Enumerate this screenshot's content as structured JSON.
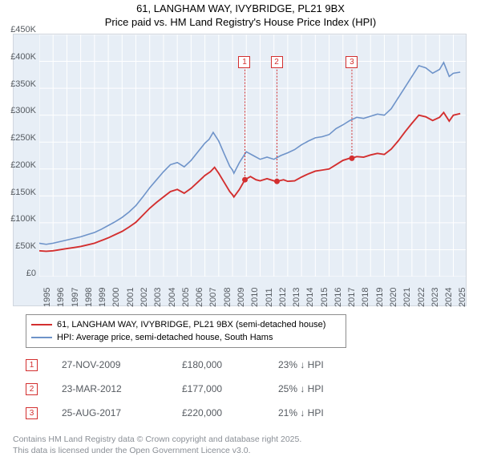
{
  "title": {
    "line1": "61, LANGHAM WAY, IVYBRIDGE, PL21 9BX",
    "line2": "Price paid vs. HM Land Registry's House Price Index (HPI)",
    "fontsize": 13,
    "color": "#000000"
  },
  "chart": {
    "type": "line",
    "background_color": "#e7eef6",
    "grid_color": "#ffffff",
    "axis_label_fontsize": 11,
    "axis_label_color": "#555a60",
    "x_axis": {
      "min": 1995,
      "max": 2025.9,
      "ticks": [
        1995,
        1996,
        1997,
        1998,
        1999,
        2000,
        2001,
        2002,
        2003,
        2004,
        2005,
        2006,
        2007,
        2008,
        2009,
        2010,
        2011,
        2012,
        2013,
        2014,
        2015,
        2016,
        2017,
        2018,
        2019,
        2020,
        2021,
        2022,
        2023,
        2024,
        2025
      ]
    },
    "y_axis": {
      "min": 0,
      "max": 450000,
      "ticks": [
        0,
        50000,
        100000,
        150000,
        200000,
        250000,
        300000,
        350000,
        400000,
        450000
      ],
      "labels": [
        "£0",
        "£50K",
        "£100K",
        "£150K",
        "£200K",
        "£250K",
        "£300K",
        "£350K",
        "£400K",
        "£450K"
      ]
    },
    "series": [
      {
        "name": "hpi",
        "label": "HPI: Average price, semi-detached house, South Hams",
        "color": "#6e93c9",
        "line_width": 1.6,
        "points": [
          [
            1995.0,
            62000
          ],
          [
            1995.5,
            60000
          ],
          [
            1996.0,
            62000
          ],
          [
            1996.5,
            65000
          ],
          [
            1997.0,
            68000
          ],
          [
            1997.5,
            71000
          ],
          [
            1998.0,
            74000
          ],
          [
            1998.5,
            78000
          ],
          [
            1999.0,
            82000
          ],
          [
            1999.5,
            88000
          ],
          [
            2000.0,
            95000
          ],
          [
            2000.5,
            102000
          ],
          [
            2001.0,
            110000
          ],
          [
            2001.5,
            120000
          ],
          [
            2002.0,
            132000
          ],
          [
            2002.5,
            148000
          ],
          [
            2003.0,
            165000
          ],
          [
            2003.5,
            180000
          ],
          [
            2004.0,
            195000
          ],
          [
            2004.5,
            208000
          ],
          [
            2005.0,
            212000
          ],
          [
            2005.5,
            204000
          ],
          [
            2006.0,
            216000
          ],
          [
            2006.5,
            232000
          ],
          [
            2007.0,
            248000
          ],
          [
            2007.3,
            255000
          ],
          [
            2007.6,
            268000
          ],
          [
            2008.0,
            252000
          ],
          [
            2008.4,
            228000
          ],
          [
            2008.8,
            205000
          ],
          [
            2009.0,
            198000
          ],
          [
            2009.1,
            192000
          ],
          [
            2009.5,
            212000
          ],
          [
            2010.0,
            232000
          ],
          [
            2010.5,
            225000
          ],
          [
            2011.0,
            218000
          ],
          [
            2011.5,
            222000
          ],
          [
            2012.0,
            218000
          ],
          [
            2012.5,
            225000
          ],
          [
            2013.0,
            230000
          ],
          [
            2013.5,
            236000
          ],
          [
            2014.0,
            245000
          ],
          [
            2014.5,
            252000
          ],
          [
            2015.0,
            258000
          ],
          [
            2015.5,
            260000
          ],
          [
            2016.0,
            264000
          ],
          [
            2016.5,
            275000
          ],
          [
            2017.0,
            282000
          ],
          [
            2017.5,
            290000
          ],
          [
            2018.0,
            296000
          ],
          [
            2018.5,
            294000
          ],
          [
            2019.0,
            298000
          ],
          [
            2019.5,
            302000
          ],
          [
            2020.0,
            300000
          ],
          [
            2020.5,
            312000
          ],
          [
            2021.0,
            332000
          ],
          [
            2021.5,
            352000
          ],
          [
            2022.0,
            372000
          ],
          [
            2022.5,
            392000
          ],
          [
            2023.0,
            388000
          ],
          [
            2023.5,
            378000
          ],
          [
            2024.0,
            385000
          ],
          [
            2024.3,
            398000
          ],
          [
            2024.7,
            372000
          ],
          [
            2025.0,
            378000
          ],
          [
            2025.5,
            380000
          ]
        ]
      },
      {
        "name": "price",
        "label": "61, LANGHAM WAY, IVYBRIDGE, PL21 9BX (semi-detached house)",
        "color": "#d32f2f",
        "line_width": 1.9,
        "points": [
          [
            1995.0,
            48000
          ],
          [
            1995.5,
            47000
          ],
          [
            1996.0,
            48000
          ],
          [
            1996.5,
            50000
          ],
          [
            1997.0,
            52000
          ],
          [
            1997.5,
            54000
          ],
          [
            1998.0,
            56000
          ],
          [
            1998.5,
            59000
          ],
          [
            1999.0,
            62000
          ],
          [
            1999.5,
            67000
          ],
          [
            2000.0,
            72000
          ],
          [
            2000.5,
            78000
          ],
          [
            2001.0,
            84000
          ],
          [
            2001.5,
            92000
          ],
          [
            2002.0,
            101000
          ],
          [
            2002.5,
            114000
          ],
          [
            2003.0,
            127000
          ],
          [
            2003.5,
            138000
          ],
          [
            2004.0,
            148000
          ],
          [
            2004.5,
            158000
          ],
          [
            2005.0,
            162000
          ],
          [
            2005.5,
            155000
          ],
          [
            2006.0,
            164000
          ],
          [
            2006.5,
            176000
          ],
          [
            2007.0,
            188000
          ],
          [
            2007.4,
            195000
          ],
          [
            2007.7,
            203000
          ],
          [
            2008.0,
            192000
          ],
          [
            2008.4,
            175000
          ],
          [
            2008.8,
            158000
          ],
          [
            2009.0,
            152000
          ],
          [
            2009.1,
            148000
          ],
          [
            2009.5,
            162000
          ],
          [
            2009.9,
            180000
          ],
          [
            2010.3,
            186000
          ],
          [
            2010.7,
            180000
          ],
          [
            2011.0,
            178000
          ],
          [
            2011.5,
            182000
          ],
          [
            2012.0,
            178000
          ],
          [
            2012.22,
            177000
          ],
          [
            2012.7,
            180000
          ],
          [
            2013.0,
            177000
          ],
          [
            2013.5,
            178000
          ],
          [
            2014.0,
            185000
          ],
          [
            2014.5,
            191000
          ],
          [
            2015.0,
            196000
          ],
          [
            2015.5,
            198000
          ],
          [
            2016.0,
            200000
          ],
          [
            2016.5,
            208000
          ],
          [
            2017.0,
            216000
          ],
          [
            2017.5,
            220000
          ],
          [
            2017.65,
            220000
          ],
          [
            2018.0,
            223000
          ],
          [
            2018.5,
            222000
          ],
          [
            2019.0,
            226000
          ],
          [
            2019.5,
            229000
          ],
          [
            2020.0,
            227000
          ],
          [
            2020.5,
            237000
          ],
          [
            2021.0,
            252000
          ],
          [
            2021.5,
            269000
          ],
          [
            2022.0,
            285000
          ],
          [
            2022.5,
            300000
          ],
          [
            2023.0,
            297000
          ],
          [
            2023.5,
            290000
          ],
          [
            2024.0,
            296000
          ],
          [
            2024.3,
            305000
          ],
          [
            2024.7,
            289000
          ],
          [
            2025.0,
            300000
          ],
          [
            2025.5,
            303000
          ]
        ]
      }
    ],
    "sale_markers": [
      {
        "n": "1",
        "x": 2009.9,
        "y": 180000
      },
      {
        "n": "2",
        "x": 2012.22,
        "y": 177000
      },
      {
        "n": "3",
        "x": 2017.65,
        "y": 220000
      }
    ],
    "marker_box_color": "#d32f2f",
    "marker_top": 36
  },
  "legend": {
    "border_color": "#8d8d8d",
    "fontsize": 11
  },
  "sales_table": {
    "fontsize": 12,
    "color": "#555a60",
    "arrow": "↓",
    "rows": [
      {
        "n": "1",
        "date": "27-NOV-2009",
        "price": "£180,000",
        "pct": "23% ↓ HPI"
      },
      {
        "n": "2",
        "date": "23-MAR-2012",
        "price": "£177,000",
        "pct": "25% ↓ HPI"
      },
      {
        "n": "3",
        "date": "25-AUG-2017",
        "price": "£220,000",
        "pct": "21% ↓ HPI"
      }
    ]
  },
  "footer": {
    "fontsize": 10.5,
    "color": "#8a8f96",
    "line1": "Contains HM Land Registry data © Crown copyright and database right 2025.",
    "line2": "This data is licensed under the Open Government Licence v3.0."
  }
}
